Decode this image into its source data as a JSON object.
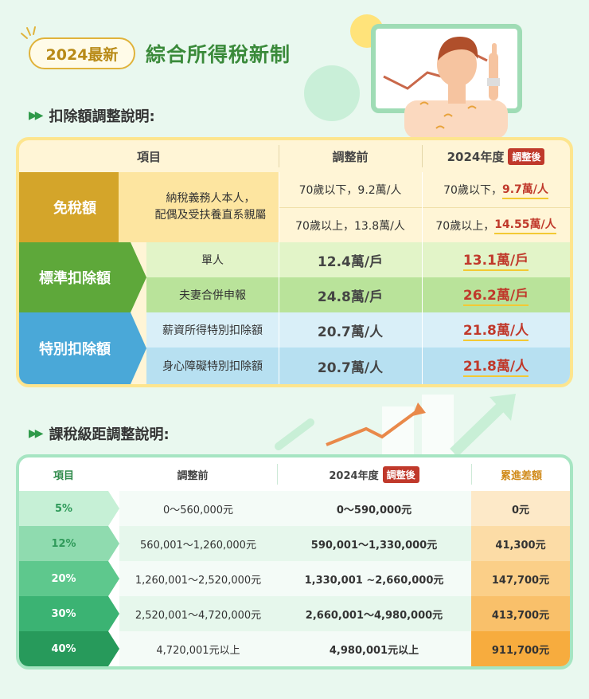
{
  "header": {
    "badge": "2024最新",
    "title": "綜合所得稅新制"
  },
  "section1": {
    "title": "扣除額調整說明:",
    "headers": {
      "item": "項目",
      "before": "調整前",
      "year": "2024年度",
      "after_tag": "調整後"
    },
    "groups": [
      {
        "category": "免稅額",
        "rows": [
          {
            "item": "納稅義務人本人，\n配偶及受扶養直系親屬",
            "before_a": "70歲以下，9.2萬/人",
            "after_a_prefix": "70歲以下，",
            "after_a": "9.7萬/人",
            "before_b": "70歲以上，13.8萬/人",
            "after_b_prefix": "70歲以上，",
            "after_b": "14.55萬/人"
          }
        ]
      },
      {
        "category": "標準扣除額",
        "rows": [
          {
            "item": "單人",
            "before": "12.4萬/戶",
            "after": "13.1萬/戶"
          },
          {
            "item": "夫妻合併申報",
            "before": "24.8萬/戶",
            "after": "26.2萬/戶"
          }
        ]
      },
      {
        "category": "特別扣除額",
        "rows": [
          {
            "item": "薪資所得特別扣除額",
            "before": "20.7萬/人",
            "after": "21.8萬/人"
          },
          {
            "item": "身心障礙特別扣除額",
            "before": "20.7萬/人",
            "after": "21.8萬/人"
          }
        ]
      }
    ]
  },
  "section2": {
    "title": "課稅級距調整說明:",
    "headers": {
      "item": "項目",
      "before": "調整前",
      "year": "2024年度",
      "after_tag": "調整後",
      "diff": "累進差額"
    },
    "rows": [
      {
        "rate": "5%",
        "before": "0～560,000元",
        "after": "0～590,000元",
        "diff": "0元"
      },
      {
        "rate": "12%",
        "before": "560,001～1,260,000元",
        "after": "590,001～1,330,000元",
        "diff": "41,300元"
      },
      {
        "rate": "20%",
        "before": "1,260,001～2,520,000元",
        "after": "1,330,001 ~2,660,000元",
        "diff": "147,700元"
      },
      {
        "rate": "30%",
        "before": "2,520,001～4,720,000元",
        "after": "2,660,001～4,980,000元",
        "diff": "413,700元"
      },
      {
        "rate": "40%",
        "before": "4,720,001元以上",
        "after": "4,980,001元以上",
        "diff": "911,700元"
      }
    ]
  },
  "colors": {
    "cat1": "#d4a52a",
    "cat2": "#5ea83a",
    "cat3": "#4aa8d8",
    "accent_red": "#c0392b",
    "brand_green": "#3a8a3a"
  },
  "icons": [
    "sparkle-icon",
    "double-arrow-icon",
    "presenter-illustration",
    "chart-board-illustration"
  ]
}
